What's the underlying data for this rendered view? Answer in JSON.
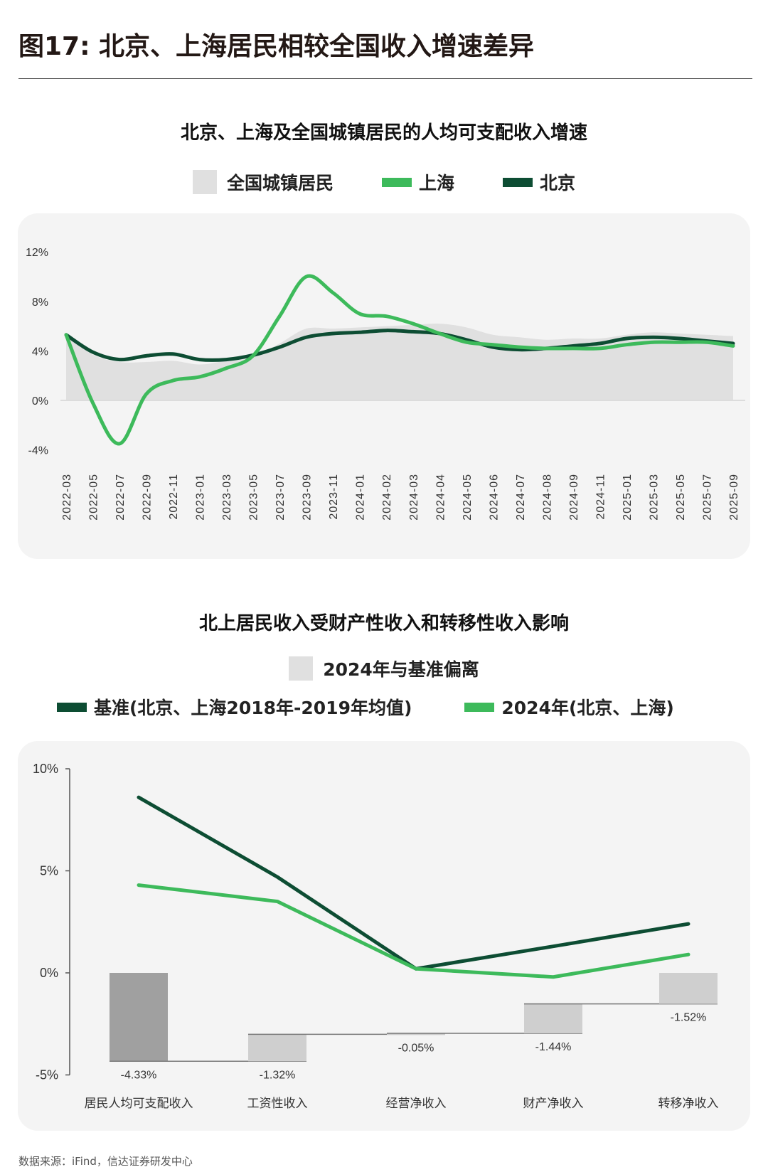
{
  "figure_title": "图17: 北京、上海居民相较全国收入增速差异",
  "source": "数据来源：iFind，信达证券研发中心",
  "colors": {
    "beijing": "#0d4d33",
    "shanghai": "#3dba5b",
    "national": "#e0e0e0",
    "panel": "#f4f4f4",
    "bar_total": "#a0a0a0",
    "bar_component": "#cfcfcf"
  },
  "chart_data": [
    {
      "type": "area+line",
      "title": "北京、上海及全国城镇居民的人均可支配收入增速",
      "legend": [
        "全国城镇居民",
        "上海",
        "北京"
      ],
      "legend_placement": "top",
      "yticks": [
        "12%",
        "8%",
        "4%",
        "0%",
        "-4%"
      ],
      "ylim": [
        -4,
        12
      ],
      "grid": false,
      "categories": [
        "2022-03",
        "2022-05",
        "2022-07",
        "2022-09",
        "2022-11",
        "2023-01",
        "2023-03",
        "2023-05",
        "2023-07",
        "2023-09",
        "2023-11",
        "2024-01",
        "2024-02",
        "2024-03",
        "2024-04",
        "2024-05",
        "2024-06",
        "2024-07",
        "2024-08",
        "2024-09",
        "2024-11",
        "2025-01",
        "2025-03",
        "2025-05",
        "2025-07",
        "2025-09"
      ],
      "series": [
        {
          "name": "全国城镇居民",
          "kind": "area",
          "values": [
            5.3,
            3.7,
            3.1,
            3.1,
            3.2,
            2.9,
            3.2,
            3.5,
            4.6,
            5.8,
            5.8,
            5.9,
            6.0,
            6.1,
            6.2,
            5.9,
            5.3,
            5.1,
            4.9,
            5.0,
            5.0,
            5.3,
            5.5,
            5.4,
            5.3,
            5.2
          ]
        },
        {
          "name": "上海",
          "kind": "line",
          "values": [
            5.3,
            -0.2,
            -3.5,
            0.5,
            1.6,
            1.9,
            2.6,
            3.6,
            6.8,
            10.0,
            8.7,
            7.0,
            6.8,
            6.2,
            5.4,
            4.7,
            4.5,
            4.3,
            4.2,
            4.2,
            4.2,
            4.5,
            4.7,
            4.7,
            4.7,
            4.4
          ]
        },
        {
          "name": "北京",
          "kind": "line",
          "values": [
            5.3,
            3.9,
            3.3,
            3.6,
            3.75,
            3.3,
            3.3,
            3.65,
            4.3,
            5.1,
            5.4,
            5.5,
            5.65,
            5.55,
            5.4,
            4.9,
            4.3,
            4.1,
            4.2,
            4.4,
            4.6,
            5.0,
            5.1,
            5.0,
            4.8,
            4.6
          ]
        }
      ]
    },
    {
      "type": "waterfall+line",
      "title": "北上居民收入受财产性收入和转移性收入影响",
      "legend": [
        "2024年与基准偏离",
        "基准(北京、上海2018年-2019年均值)",
        "2024年(北京、上海)"
      ],
      "legend_placement": "top",
      "yticks": [
        "10%",
        "5%",
        "0%",
        "-5%"
      ],
      "ylim": [
        -5,
        10
      ],
      "grid": false,
      "categories": [
        "居民人均可支配收入",
        "工资性收入",
        "经营净收入",
        "财产净收入",
        "转移净收入"
      ],
      "bars": {
        "name": "2024年与基准偏离",
        "values": [
          -4.33,
          1.32,
          0.05,
          1.44,
          1.52
        ],
        "labels": [
          "-4.33%",
          "-1.32%",
          "-0.05%",
          "-1.44%",
          "-1.52%"
        ]
      },
      "series": [
        {
          "name": "基准(北京、上海2018年-2019年均值)",
          "values": [
            8.6,
            4.7,
            0.2,
            1.3,
            2.4
          ]
        },
        {
          "name": "2024年(北京、上海)",
          "values": [
            4.3,
            3.5,
            0.2,
            -0.2,
            0.9
          ]
        }
      ]
    }
  ]
}
